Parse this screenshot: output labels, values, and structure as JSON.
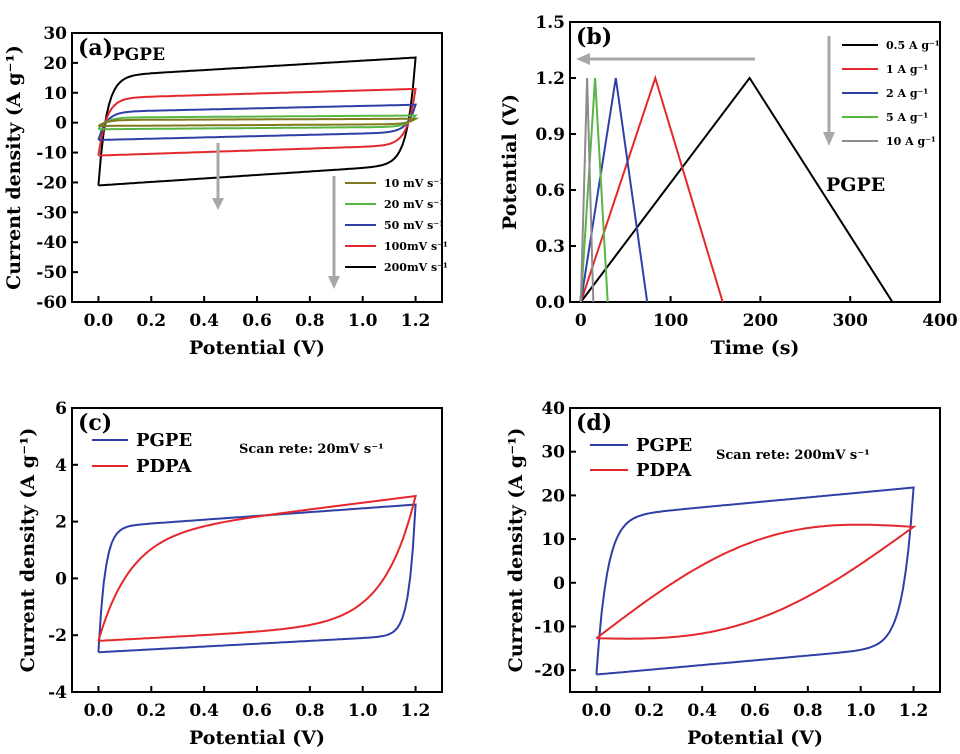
{
  "chart_data": [
    {
      "panel": "(a)",
      "type": "line",
      "inset_label": "PGPE",
      "xlabel": "Potential (V)",
      "ylabel": "Current density (A g⁻¹)",
      "xlim": [
        -0.1,
        1.3
      ],
      "ylim": [
        -60,
        30
      ],
      "xticks": [
        "0.0",
        "0.2",
        "0.4",
        "0.6",
        "0.8",
        "1.0",
        "1.2"
      ],
      "yticks": [
        "-60",
        "-50",
        "-40",
        "-30",
        "-20",
        "-10",
        "0",
        "10",
        "20",
        "30"
      ],
      "grid": false,
      "legend_position": "lower-right",
      "series": [
        {
          "name": "10 mV s⁻¹",
          "color": "#7f7a1e",
          "upper": [
            0.9,
            1.3
          ],
          "lower": [
            -1.1,
            -0.5
          ]
        },
        {
          "name": "20 mV s⁻¹",
          "color": "#57b644",
          "upper": [
            1.7,
            2.4
          ],
          "lower": [
            -2.2,
            -1.4
          ]
        },
        {
          "name": "50 mV s⁻¹",
          "color": "#2f3fa6",
          "upper": [
            3.6,
            6.0
          ],
          "lower": [
            -5.8,
            -3.2
          ]
        },
        {
          "name": "100mV s⁻¹",
          "color": "#e4282c",
          "upper": [
            8.2,
            11.3
          ],
          "lower": [
            -11.0,
            -7.5
          ]
        },
        {
          "name": "200mV s⁻¹",
          "color": "#000000",
          "upper": [
            15.5,
            21.8
          ],
          "lower": [
            -21.0,
            -14.0
          ]
        }
      ]
    },
    {
      "panel": "(b)",
      "type": "line",
      "inset_label": "PGPE",
      "xlabel": "Time (s)",
      "ylabel": "Potential (V)",
      "xlim": [
        -12,
        400
      ],
      "ylim": [
        0,
        1.5
      ],
      "xticks": [
        "0",
        "100",
        "200",
        "300",
        "400"
      ],
      "yticks": [
        "0.0",
        "0.3",
        "0.6",
        "0.9",
        "1.2",
        "1.5"
      ],
      "grid": false,
      "legend_position": "top-right",
      "series": [
        {
          "name": "0.5 A g⁻¹",
          "color": "#000000",
          "x": [
            0,
            188,
            347
          ],
          "y": [
            0,
            1.2,
            0
          ]
        },
        {
          "name": "1 A g⁻¹",
          "color": "#e4282c",
          "x": [
            0,
            83,
            158
          ],
          "y": [
            0,
            1.2,
            0
          ]
        },
        {
          "name": "2 A g⁻¹",
          "color": "#2f3fa6",
          "x": [
            0,
            39,
            74
          ],
          "y": [
            0,
            1.2,
            0
          ]
        },
        {
          "name": "5 A g⁻¹",
          "color": "#57b644",
          "x": [
            0,
            16,
            30
          ],
          "y": [
            0,
            1.2,
            0
          ]
        },
        {
          "name": "10 A g⁻¹",
          "color": "#8c8c8c",
          "x": [
            0,
            7,
            14
          ],
          "y": [
            0,
            1.2,
            0
          ]
        }
      ]
    },
    {
      "panel": "(c)",
      "type": "line",
      "annotation": "Scan rete: 20mV s⁻¹",
      "xlabel": "Potential (V)",
      "ylabel": "Current density (A g⁻¹)",
      "xlim": [
        -0.1,
        1.3
      ],
      "ylim": [
        -4,
        6
      ],
      "xticks": [
        "0.0",
        "0.2",
        "0.4",
        "0.6",
        "0.8",
        "1.0",
        "1.2"
      ],
      "yticks": [
        "-4",
        "-2",
        "0",
        "2",
        "4",
        "6"
      ],
      "grid": false,
      "legend_position": "top-left",
      "series": [
        {
          "name": "PGPE",
          "color": "#2f3fa6",
          "upper": [
            1.8,
            2.6
          ],
          "lower": [
            -2.6,
            -2.0
          ],
          "tau": 0.025
        },
        {
          "name": "PDPA",
          "color": "#e4282c",
          "upper": [
            1.5,
            2.9
          ],
          "lower": [
            -2.2,
            -1.6
          ],
          "tau": 0.12
        }
      ]
    },
    {
      "panel": "(d)",
      "type": "line",
      "annotation": "Scan rete: 200mV s⁻¹",
      "xlabel": "Potential (V)",
      "ylabel": "Current density (A g⁻¹)",
      "xlim": [
        -0.1,
        1.3
      ],
      "ylim": [
        -25,
        40
      ],
      "xticks": [
        "0.0",
        "0.2",
        "0.4",
        "0.6",
        "0.8",
        "1.0",
        "1.2"
      ],
      "yticks": [
        "-20",
        "-10",
        "0",
        "10",
        "20",
        "30",
        "40"
      ],
      "grid": false,
      "legend_position": "top-left",
      "series": [
        {
          "name": "PGPE",
          "color": "#2f3fa6",
          "upper": [
            15.0,
            21.8
          ],
          "lower": [
            -21.0,
            -14.5
          ],
          "tau": 0.04
        },
        {
          "name": "PDPA",
          "color": "#e4282c",
          "upper": [
            -12.7,
            12.8
          ],
          "lower": [
            -12.7,
            12.8
          ]
        }
      ]
    }
  ]
}
